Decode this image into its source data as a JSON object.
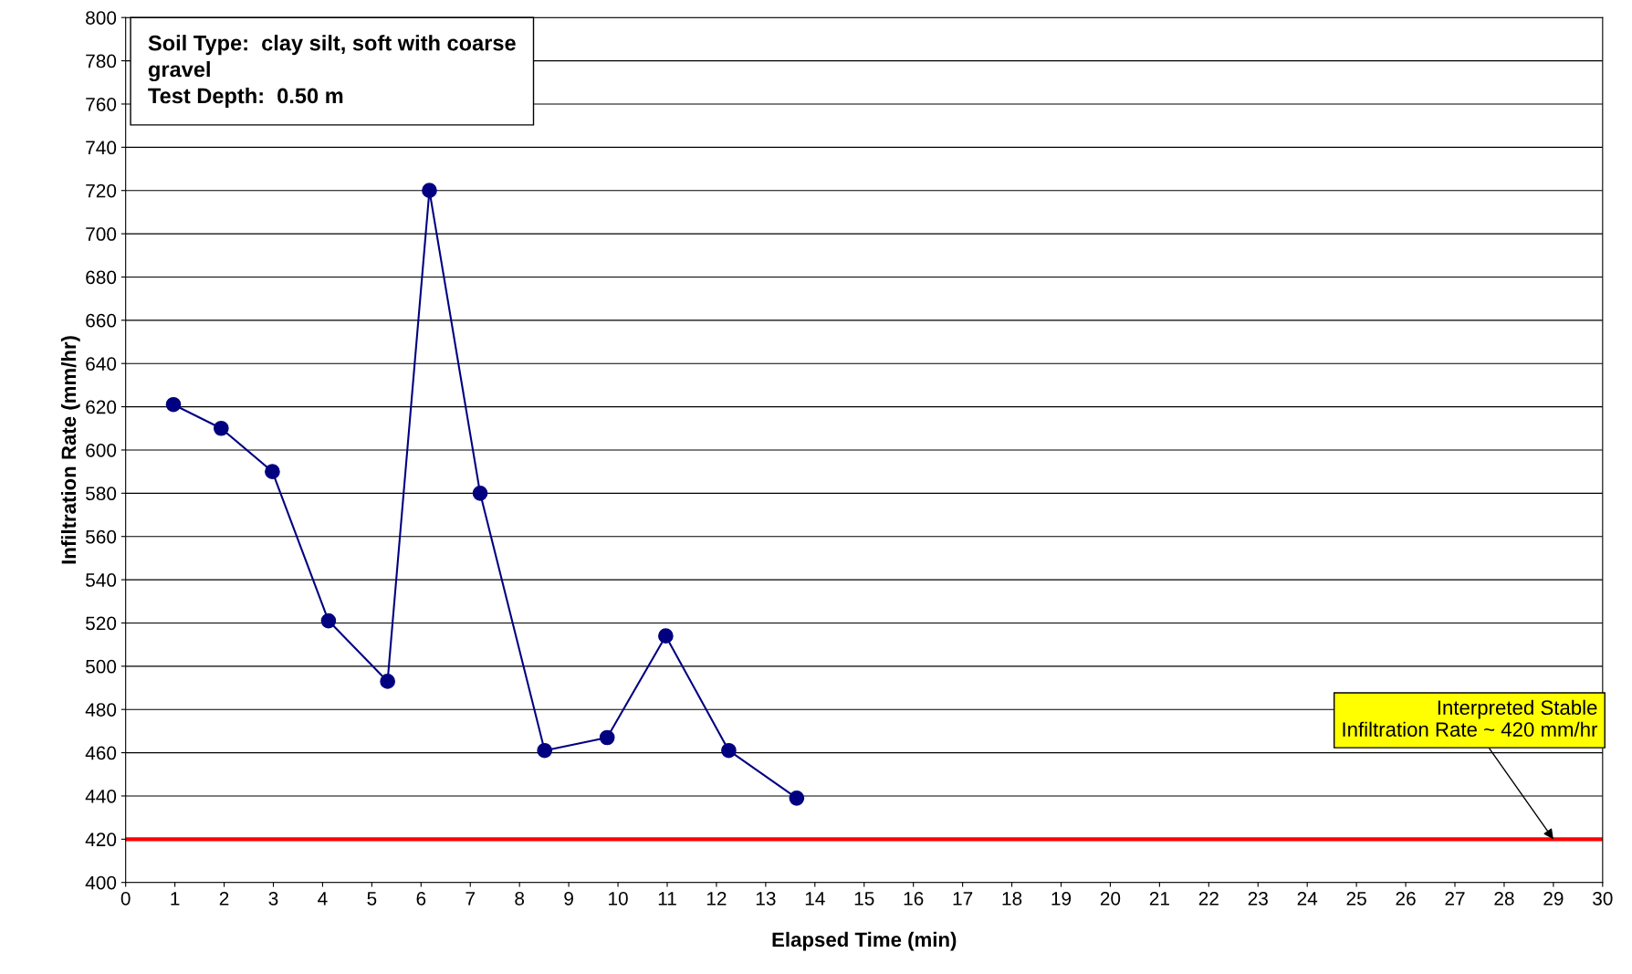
{
  "chart_data": {
    "type": "line",
    "xlabel": "Elapsed Time (min)",
    "ylabel": "Infiltration Rate (mm/hr)",
    "series": [
      {
        "color": "#000080",
        "x": [
          0.97,
          1.94,
          2.98,
          4.12,
          5.32,
          6.17,
          7.2,
          8.51,
          9.78,
          10.97,
          12.25,
          13.63
        ],
        "values": [
          621,
          610,
          590,
          521,
          493,
          720,
          580,
          461,
          467,
          514,
          461,
          439
        ]
      }
    ],
    "xlim": [
      0,
      30
    ],
    "xticks": [
      0,
      1,
      2,
      3,
      4,
      5,
      6,
      7,
      8,
      9,
      10,
      11,
      12,
      13,
      14,
      15,
      16,
      17,
      18,
      19,
      20,
      21,
      22,
      23,
      24,
      25,
      26,
      27,
      28,
      29,
      30
    ],
    "ylim": [
      400,
      800
    ],
    "yticks": [
      400,
      420,
      440,
      460,
      480,
      500,
      520,
      540,
      560,
      580,
      600,
      620,
      640,
      660,
      680,
      700,
      720,
      740,
      760,
      780,
      800
    ],
    "grid": "y",
    "marker": "circle",
    "line_style": "solid",
    "legend": false,
    "ref_lines": [
      {
        "axis": "y",
        "value": 420,
        "color": "#ff0000"
      }
    ],
    "annotations": [
      "Soil Type:  clay silt, soft with coarse\ngravel\nTest Depth:  0.50 m",
      {
        "text": "Interpreted Stable\nInfiltration Rate ~ 420 mm/hr",
        "x": 29,
        "y": 420
      }
    ]
  }
}
